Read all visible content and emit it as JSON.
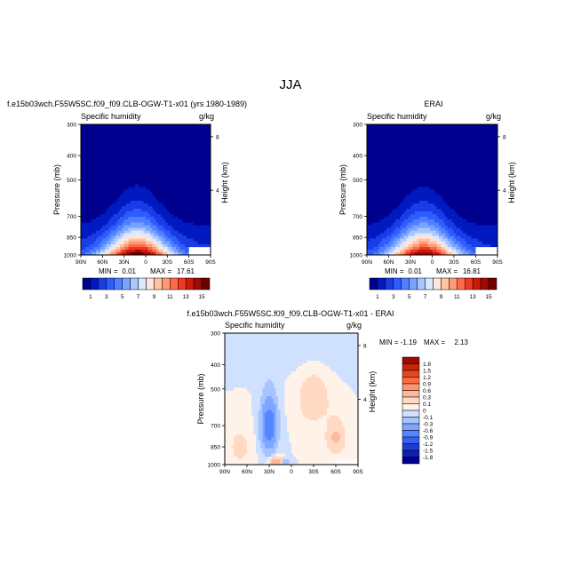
{
  "figure": {
    "title": "JJA"
  },
  "colors": {
    "positive_field_levels": [
      1,
      3,
      5,
      7,
      9,
      11,
      13,
      15
    ],
    "field_palette": [
      "#00008f",
      "#0019c0",
      "#1a3ce6",
      "#2e5cff",
      "#4f80ff",
      "#7aa3ff",
      "#a9c6ff",
      "#d8e8ff",
      "#ffe6d8",
      "#ffc3a6",
      "#ff9a78",
      "#ff6a4a",
      "#ef3a22",
      "#cc1a0a",
      "#a00a00",
      "#6e0000"
    ],
    "diff_palette": [
      "#00008f",
      "#0f1fb3",
      "#1f3cd6",
      "#3562f0",
      "#5585ff",
      "#7ea5ff",
      "#a6c4ff",
      "#cfe1ff",
      "#fff2e8",
      "#ffd9c2",
      "#ffb89a",
      "#ff9470",
      "#f96b45",
      "#e5461f",
      "#c8240a",
      "#9a0b00"
    ]
  },
  "chart_data": [
    {
      "type": "heatmap",
      "title": "f.e15b03wch.F55W5SC.f09_f09.CLB-OGW-T1-x01 (yrs 1980-1989)",
      "variable": "Specific humidity",
      "units": "g/kg",
      "xlabel": "",
      "ylabel": "Pressure (mb)",
      "y2label": "Height (km)",
      "x_ticks": [
        "90N",
        "60N",
        "30N",
        "0",
        "30S",
        "60S",
        "90S"
      ],
      "x_range": [
        90,
        -90
      ],
      "y_ticks": [
        300,
        400,
        500,
        700,
        850,
        1000
      ],
      "y_range": [
        1000,
        300
      ],
      "y_scale": "log",
      "y2_ticks": [
        8,
        4
      ],
      "min_label": "MIN =",
      "min": "0.01",
      "max_label": "MAX =",
      "max": "17.61",
      "contour_levels": [
        1,
        3,
        5,
        7,
        9,
        11,
        13,
        15
      ],
      "peak_lat": 10,
      "peak_value": 17.61
    },
    {
      "type": "heatmap",
      "title": "ERAI",
      "variable": "Specific humidity",
      "units": "g/kg",
      "xlabel": "",
      "ylabel": "Pressure (mb)",
      "y2label": "Height (km)",
      "x_ticks": [
        "90N",
        "60N",
        "30N",
        "0",
        "30S",
        "60S",
        "90S"
      ],
      "x_range": [
        90,
        -90
      ],
      "y_ticks": [
        300,
        400,
        500,
        700,
        850,
        1000
      ],
      "y_range": [
        1000,
        300
      ],
      "y_scale": "log",
      "y2_ticks": [
        8,
        4
      ],
      "min_label": "MIN =",
      "min": "0.01",
      "max_label": "MAX =",
      "max": "16.81",
      "contour_levels": [
        1,
        3,
        5,
        7,
        9,
        11,
        13,
        15
      ],
      "peak_lat": 10,
      "peak_value": 16.81
    },
    {
      "type": "heatmap",
      "title": "f.e15b03wch.F55W5SC.f09_f09.CLB-OGW-T1-x01 - ERAI",
      "variable": "Specific humidity",
      "units": "g/kg",
      "xlabel": "",
      "ylabel": "Pressure (mb)",
      "y2label": "Height (km)",
      "x_ticks": [
        "90N",
        "60N",
        "30N",
        "0",
        "30S",
        "60S",
        "90S"
      ],
      "x_range": [
        90,
        -90
      ],
      "y_ticks": [
        300,
        400,
        500,
        700,
        850,
        1000
      ],
      "y_range": [
        1000,
        300
      ],
      "y_scale": "log",
      "y2_ticks": [
        8,
        4
      ],
      "min_label": "MIN =",
      "min": "-1.19",
      "max_label": "MAX =",
      "max": "2.13",
      "contour_levels": [
        -1.8,
        -1.5,
        -1.2,
        -0.9,
        -0.6,
        -0.3,
        -0.1,
        0,
        0.1,
        0.3,
        0.6,
        0.9,
        1.2,
        1.5,
        1.8
      ],
      "contour_level_labels": [
        "1.8",
        "1.5",
        "1.2",
        "0.9",
        "0.6",
        "0.3",
        "0.1",
        "0",
        "-0.1",
        "-0.3",
        "-0.6",
        "-0.9",
        "-1.2",
        "-1.5",
        "-1.8"
      ]
    }
  ]
}
